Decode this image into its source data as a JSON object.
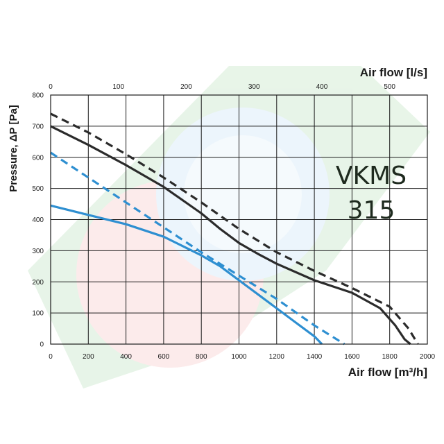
{
  "chart_data": {
    "type": "line",
    "model_label": [
      "VKMS",
      "315"
    ],
    "xlabel": "Air flow [m³/h]",
    "x2label": "Air flow [l/s]",
    "ylabel": "Pressure, ΔP [Pa]",
    "xlim": [
      0,
      2000
    ],
    "x2lim": [
      0,
      555.6
    ],
    "ylim": [
      0,
      800
    ],
    "x_ticks": [
      "0",
      "200",
      "400",
      "600",
      "800",
      "1000",
      "1200",
      "1400",
      "1600",
      "1800",
      "2000"
    ],
    "x2_ticks": [
      "0",
      "100",
      "200",
      "300",
      "400",
      "500"
    ],
    "y_ticks": [
      "0",
      "100",
      "200",
      "300",
      "400",
      "500",
      "600",
      "700",
      "800"
    ],
    "grid": true,
    "colors": {
      "dark": "#2b2b2b",
      "blue": "#2e8fd1"
    },
    "series": [
      {
        "color": "#2b2b2b",
        "dash": true,
        "x": [
          0,
          200,
          400,
          600,
          800,
          1000,
          1200,
          1400,
          1600,
          1800,
          1900,
          1950
        ],
        "y": [
          740,
          680,
          610,
          535,
          455,
          370,
          295,
          235,
          180,
          120,
          50,
          0
        ]
      },
      {
        "color": "#2b2b2b",
        "dash": false,
        "x": [
          0,
          200,
          400,
          600,
          800,
          900,
          1000,
          1100,
          1200,
          1400,
          1600,
          1750,
          1830,
          1880,
          1910
        ],
        "y": [
          700,
          640,
          575,
          505,
          420,
          370,
          325,
          290,
          258,
          205,
          165,
          115,
          60,
          15,
          0
        ]
      },
      {
        "color": "#2e8fd1",
        "dash": true,
        "x": [
          0,
          200,
          400,
          600,
          800,
          1000,
          1200,
          1400,
          1560
        ],
        "y": [
          615,
          535,
          455,
          375,
          295,
          220,
          145,
          60,
          0
        ]
      },
      {
        "color": "#2e8fd1",
        "dash": false,
        "x": [
          0,
          200,
          400,
          600,
          700,
          800,
          900,
          1000,
          1100,
          1200,
          1300,
          1400,
          1440
        ],
        "y": [
          445,
          415,
          385,
          345,
          315,
          285,
          250,
          205,
          160,
          115,
          70,
          25,
          0
        ]
      }
    ]
  }
}
